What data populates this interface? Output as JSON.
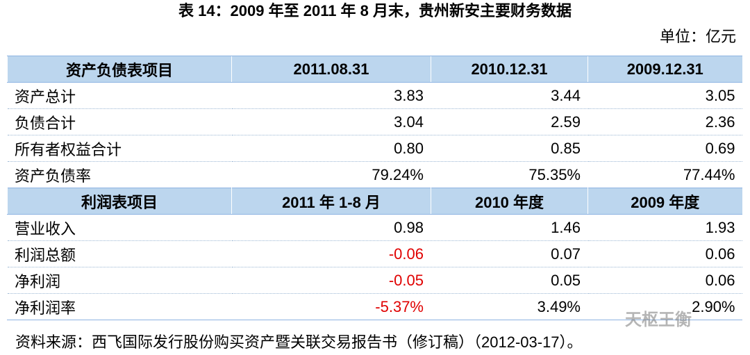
{
  "header": {
    "title": "表 14：2009 年至 2011 年 8 月末，贵州新安主要财务数据",
    "unit": "单位：亿元"
  },
  "table": {
    "sections": [
      {
        "header": [
          "资产负债表项目",
          "2011.08.31",
          "2010.12.31",
          "2009.12.31"
        ],
        "rows": [
          [
            "资产总计",
            "3.83",
            "3.44",
            "3.05"
          ],
          [
            "负债合计",
            "3.04",
            "2.59",
            "2.36"
          ],
          [
            "所有者权益合计",
            "0.80",
            "0.85",
            "0.69"
          ],
          [
            "资产负债率",
            "79.24%",
            "75.35%",
            "77.44%"
          ]
        ]
      },
      {
        "header": [
          "利润表项目",
          "2011 年 1-8 月",
          "2010 年度",
          "2009 年度"
        ],
        "rows": [
          [
            "营业收入",
            "0.98",
            "1.46",
            "1.93"
          ],
          [
            "利润总额",
            "-0.06",
            "0.07",
            "0.06"
          ],
          [
            "净利润",
            "-0.05",
            "0.05",
            "0.06"
          ],
          [
            "净利润率",
            "-5.37%",
            "3.49%",
            "2.90%"
          ]
        ]
      }
    ]
  },
  "watermark": "天枢王衡",
  "footer": {
    "source": "资料来源：西飞国际发行股份购买资产暨关联交易报告书（修订稿）（2012-03-17）。"
  }
}
